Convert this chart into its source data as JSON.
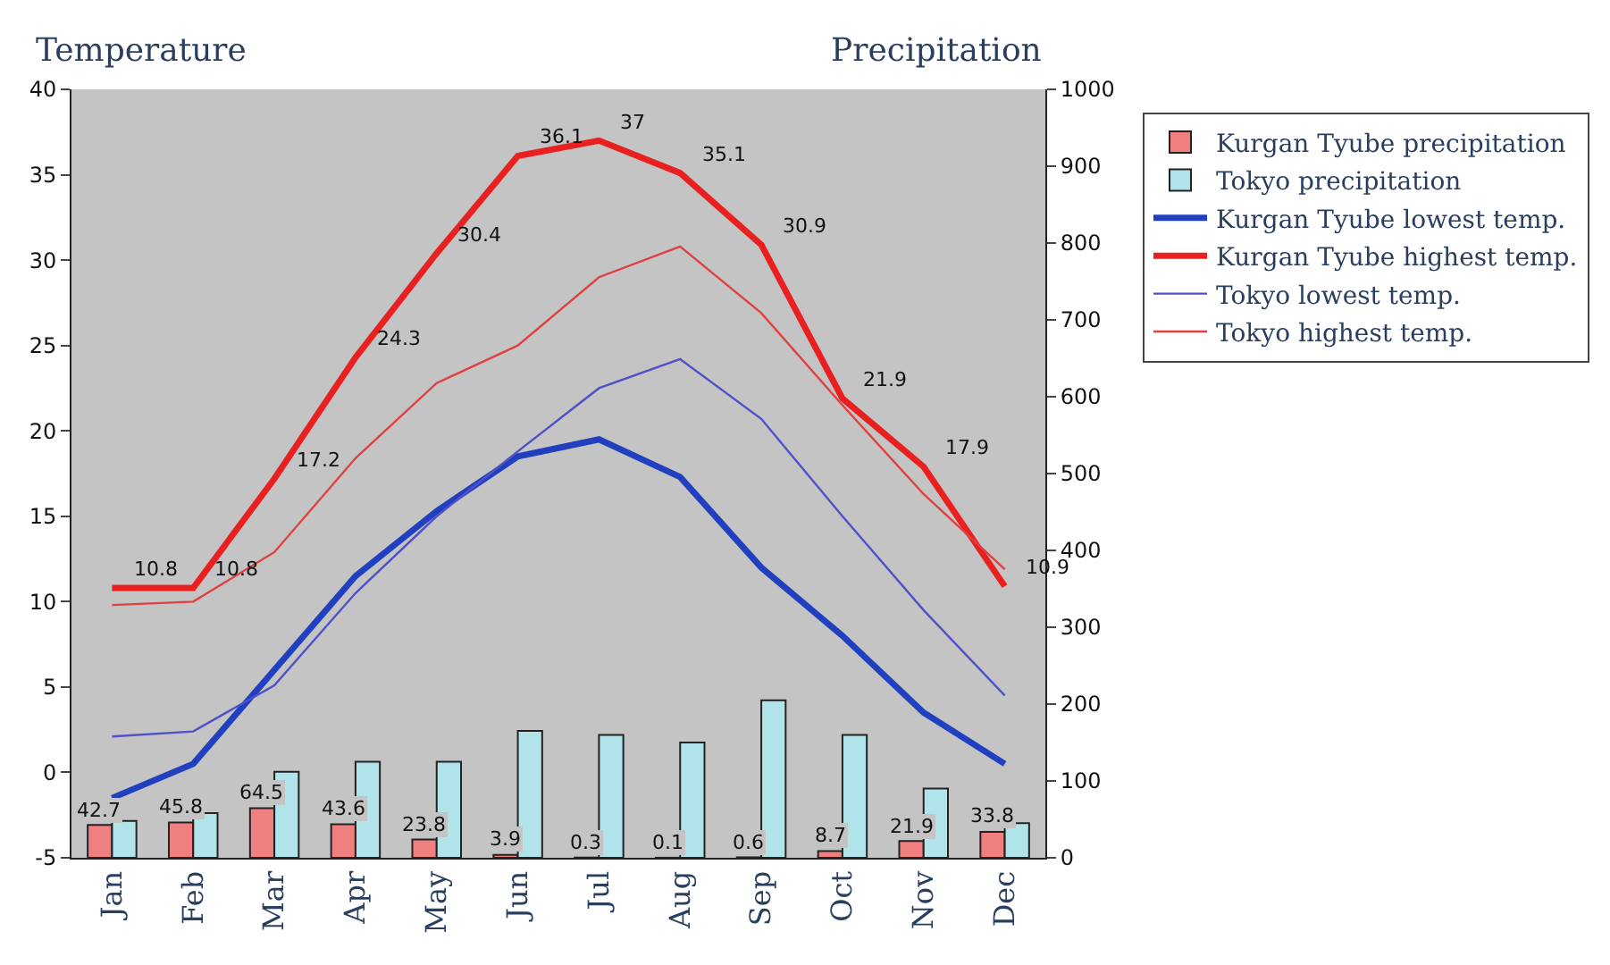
{
  "chart_data": {
    "type": "bar",
    "ylabel": "Temperature",
    "y2label": "Precipitation",
    "categories": [
      "Jan",
      "Feb",
      "Mar",
      "Apr",
      "May",
      "Jun",
      "Jul",
      "Aug",
      "Sep",
      "Oct",
      "Nov",
      "Dec"
    ],
    "series": [
      {
        "name": "Kurgan Tyube precipitation",
        "axis": "y2",
        "color": "#f08080",
        "values": [
          42.7,
          45.8,
          64.5,
          43.6,
          23.8,
          3.9,
          0.3,
          0.1,
          0.6,
          8.7,
          21.9,
          33.8
        ],
        "value_labels": [
          "42.7",
          "45.8",
          "64.5",
          "43.6",
          "23.8",
          "3.9",
          "0.3",
          "0.1",
          "0.6",
          "8.7",
          "21.9",
          "33.8"
        ]
      },
      {
        "name": "Tokyo precipitation",
        "axis": "y2",
        "color": "#b0e4ea",
        "values": [
          48,
          58,
          112,
          125,
          125,
          165,
          160,
          150,
          205,
          160,
          90,
          45
        ]
      },
      {
        "name": "Kurgan Tyube lowest temp.",
        "type": "line",
        "color": "#2040c0",
        "values": [
          -1.5,
          0.5,
          6,
          11.5,
          15.3,
          18.5,
          19.5,
          17.3,
          12,
          8,
          3.5,
          0.5
        ]
      },
      {
        "name": "Kurgan Tyube highest temp.",
        "type": "line",
        "color": "#e82020",
        "values": [
          10.8,
          10.8,
          17.2,
          24.3,
          30.4,
          36.1,
          37,
          35.1,
          30.9,
          21.9,
          17.9,
          10.9
        ],
        "value_labels": [
          "10.8",
          "10.8",
          "17.2",
          "24.3",
          "30.4",
          "36.1",
          "37",
          "35.1",
          "30.9",
          "21.9",
          "17.9",
          "10.9"
        ]
      },
      {
        "name": "Tokyo lowest temp.",
        "type": "line",
        "color": "#5050c8",
        "values": [
          2.1,
          2.4,
          5.1,
          10.5,
          15,
          18.8,
          22.5,
          24.2,
          20.7,
          15,
          9.5,
          4.5
        ]
      },
      {
        "name": "Tokyo highest temp.",
        "type": "line",
        "color": "#e04040",
        "values": [
          9.8,
          10,
          12.9,
          18.4,
          22.8,
          25,
          29,
          30.8,
          26.9,
          21.5,
          16.3,
          11.9
        ]
      }
    ],
    "ylim": [
      -5,
      40
    ],
    "yticks": [
      -5,
      0,
      5,
      10,
      15,
      20,
      25,
      30,
      35,
      40
    ],
    "y2lim": [
      0,
      1000
    ],
    "y2ticks": [
      0,
      100,
      200,
      300,
      400,
      500,
      600,
      700,
      800,
      900,
      1000
    ],
    "legend": "top right",
    "grid": false
  }
}
